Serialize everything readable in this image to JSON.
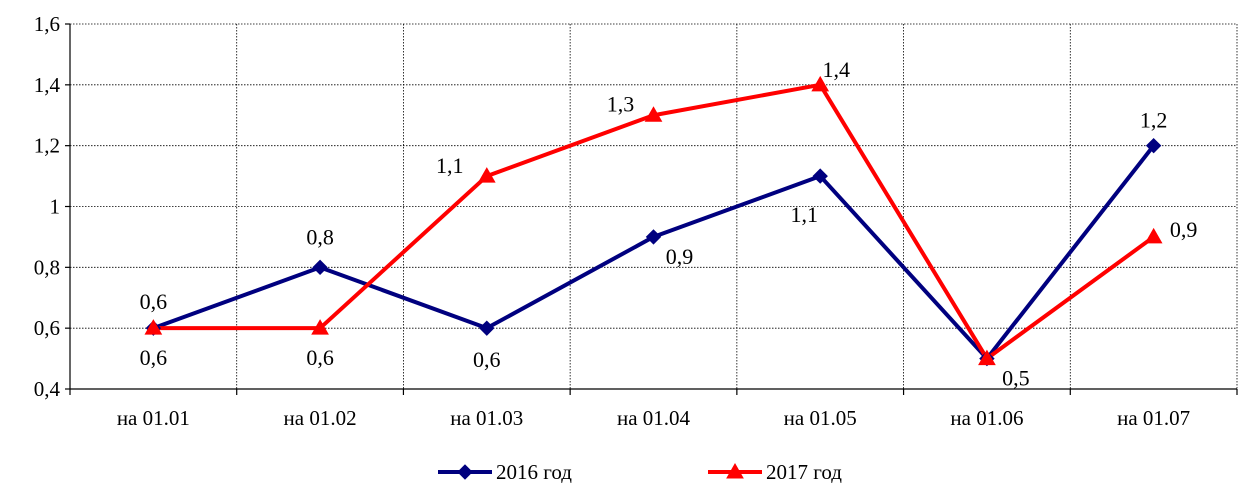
{
  "chart_data": {
    "type": "line",
    "categories": [
      "на 01.01",
      "на 01.02",
      "на 01.03",
      "на 01.04",
      "на 01.05",
      "на 01.06",
      "на 01.07"
    ],
    "series": [
      {
        "name": "2016 год",
        "values": [
          0.6,
          0.8,
          0.6,
          0.9,
          1.1,
          0.5,
          1.2
        ],
        "labels": [
          "0,6",
          "0,8",
          "0,6",
          "0,9",
          "1,1",
          "0,5",
          "1,2"
        ],
        "color": "#00007f",
        "marker": "diamond"
      },
      {
        "name": "2017 год",
        "values": [
          0.6,
          0.6,
          1.1,
          1.3,
          1.4,
          0.5,
          0.9
        ],
        "labels": [
          "0,6",
          "0,6",
          "1,1",
          "1,3",
          "1,4",
          "0,5",
          "0,9"
        ],
        "color": "#ff0000",
        "marker": "triangle"
      }
    ],
    "y_ticks": [
      0.4,
      0.6,
      0.8,
      1.0,
      1.2,
      1.4,
      1.6
    ],
    "y_tick_labels": [
      "0,4",
      "0,6",
      "0,8",
      "1",
      "1,2",
      "1,4",
      "1,6"
    ],
    "ylim": [
      0.4,
      1.6
    ],
    "grid": true,
    "legend_position": "bottom"
  }
}
